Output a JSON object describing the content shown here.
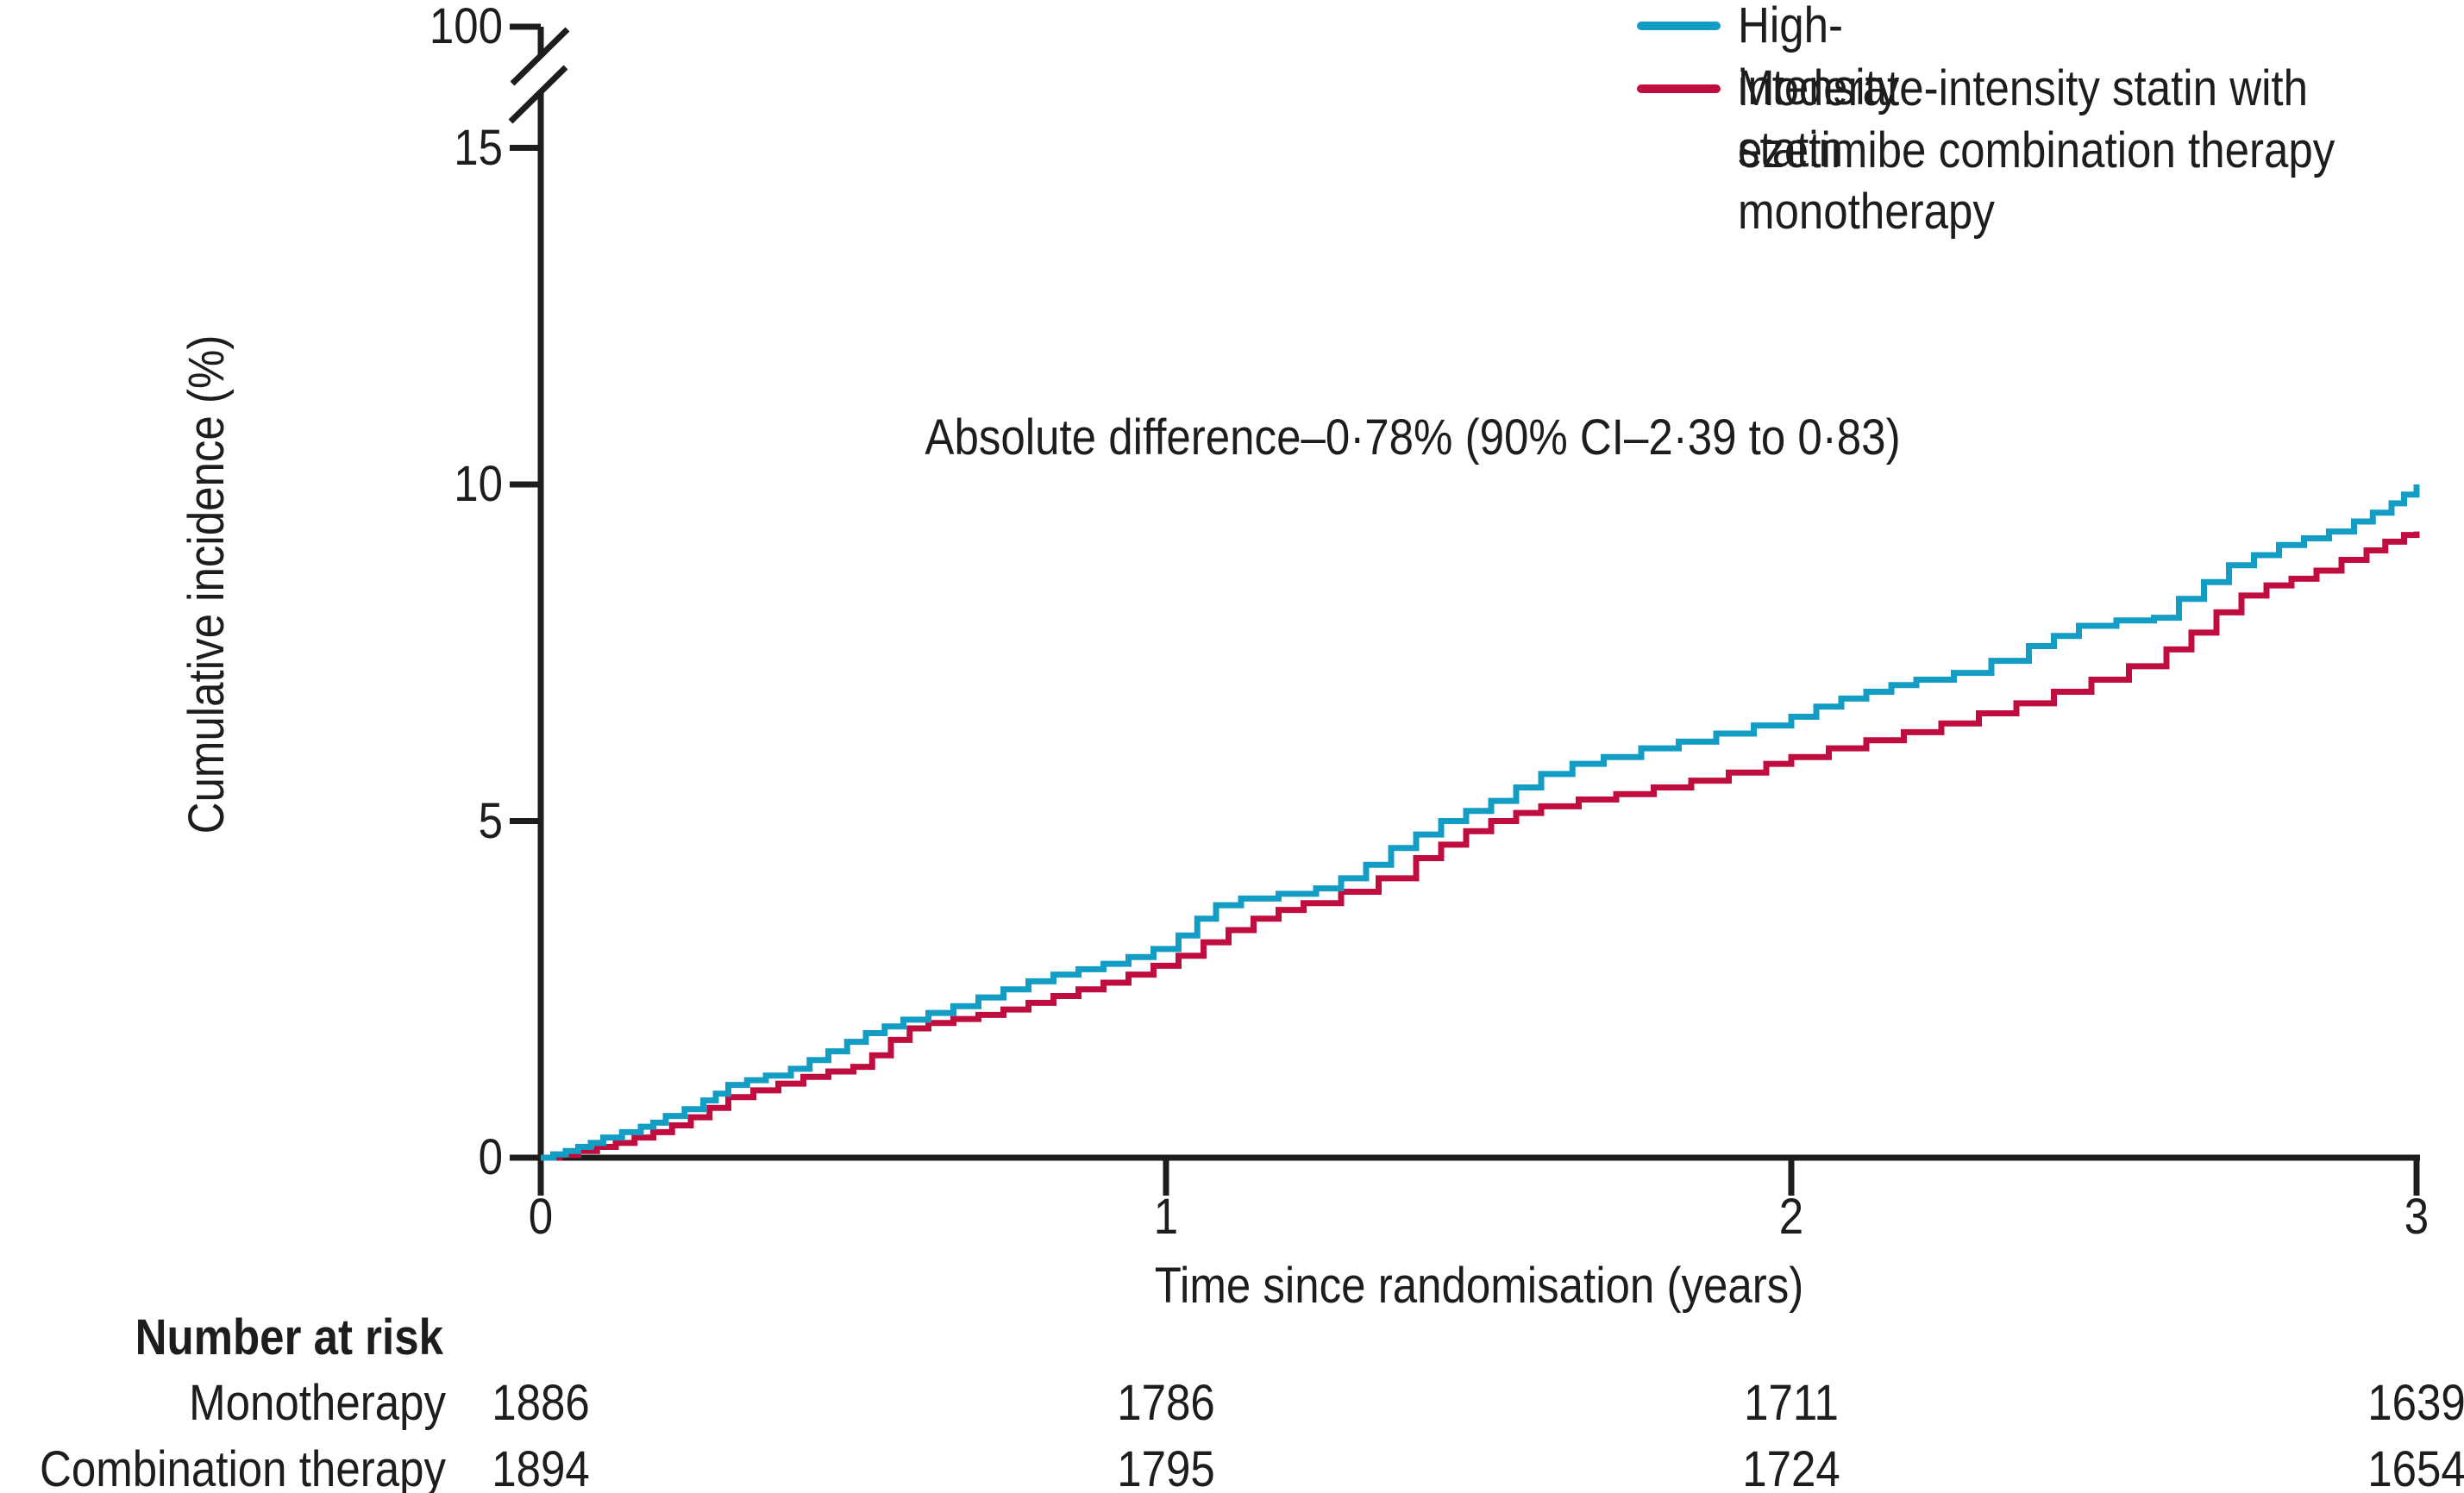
{
  "figure": {
    "background": "#ffffff",
    "text_color": "#1d1d1b",
    "axis_color": "#1d1d1b"
  },
  "chart_data": {
    "type": "line",
    "subtype": "cumulative-incidence-step-curves",
    "title": "",
    "annotation": "Absolute difference–0·78% (90% CI–2·39 to 0·83)",
    "xlabel": "Time since randomisation (years)",
    "ylabel": "Cumulative incidence (%)",
    "xlim": [
      0,
      3
    ],
    "ylim_displayed": [
      0,
      15
    ],
    "y_axis_break": true,
    "y_axis_top_label": "100",
    "x_ticks": [
      {
        "label": "0",
        "t": 0
      },
      {
        "label": "1",
        "t": 1
      },
      {
        "label": "2",
        "t": 2
      },
      {
        "label": "3",
        "t": 3
      }
    ],
    "y_ticks": [
      {
        "label": "0",
        "pct": 0
      },
      {
        "label": "5",
        "pct": 5
      },
      {
        "label": "10",
        "pct": 10
      },
      {
        "label": "15",
        "pct": 15
      }
    ],
    "grid": false,
    "legend_position": "top-right",
    "series": [
      {
        "name": "High-intensity statin monotherapy",
        "color": "#149DC4",
        "points": [
          [
            0.0,
            0.0
          ],
          [
            0.02,
            0.05
          ],
          [
            0.04,
            0.1
          ],
          [
            0.06,
            0.16
          ],
          [
            0.08,
            0.22
          ],
          [
            0.1,
            0.3
          ],
          [
            0.13,
            0.38
          ],
          [
            0.16,
            0.46
          ],
          [
            0.18,
            0.52
          ],
          [
            0.2,
            0.62
          ],
          [
            0.23,
            0.72
          ],
          [
            0.26,
            0.85
          ],
          [
            0.28,
            0.95
          ],
          [
            0.3,
            1.08
          ],
          [
            0.33,
            1.15
          ],
          [
            0.36,
            1.22
          ],
          [
            0.4,
            1.32
          ],
          [
            0.43,
            1.45
          ],
          [
            0.46,
            1.58
          ],
          [
            0.49,
            1.72
          ],
          [
            0.52,
            1.85
          ],
          [
            0.55,
            1.95
          ],
          [
            0.58,
            2.05
          ],
          [
            0.62,
            2.15
          ],
          [
            0.66,
            2.25
          ],
          [
            0.7,
            2.38
          ],
          [
            0.74,
            2.5
          ],
          [
            0.78,
            2.62
          ],
          [
            0.82,
            2.72
          ],
          [
            0.86,
            2.8
          ],
          [
            0.9,
            2.88
          ],
          [
            0.94,
            2.98
          ],
          [
            0.98,
            3.1
          ],
          [
            1.02,
            3.3
          ],
          [
            1.05,
            3.55
          ],
          [
            1.08,
            3.75
          ],
          [
            1.12,
            3.85
          ],
          [
            1.18,
            3.92
          ],
          [
            1.24,
            4.0
          ],
          [
            1.28,
            4.15
          ],
          [
            1.32,
            4.35
          ],
          [
            1.36,
            4.6
          ],
          [
            1.4,
            4.8
          ],
          [
            1.44,
            5.0
          ],
          [
            1.48,
            5.15
          ],
          [
            1.52,
            5.3
          ],
          [
            1.56,
            5.5
          ],
          [
            1.6,
            5.7
          ],
          [
            1.65,
            5.85
          ],
          [
            1.7,
            5.95
          ],
          [
            1.76,
            6.08
          ],
          [
            1.82,
            6.18
          ],
          [
            1.88,
            6.3
          ],
          [
            1.94,
            6.42
          ],
          [
            2.0,
            6.55
          ],
          [
            2.04,
            6.7
          ],
          [
            2.08,
            6.82
          ],
          [
            2.12,
            6.92
          ],
          [
            2.16,
            7.02
          ],
          [
            2.2,
            7.1
          ],
          [
            2.26,
            7.2
          ],
          [
            2.32,
            7.38
          ],
          [
            2.38,
            7.6
          ],
          [
            2.42,
            7.75
          ],
          [
            2.46,
            7.9
          ],
          [
            2.52,
            7.98
          ],
          [
            2.58,
            8.02
          ],
          [
            2.62,
            8.3
          ],
          [
            2.66,
            8.55
          ],
          [
            2.7,
            8.8
          ],
          [
            2.74,
            8.95
          ],
          [
            2.78,
            9.1
          ],
          [
            2.82,
            9.2
          ],
          [
            2.86,
            9.3
          ],
          [
            2.9,
            9.45
          ],
          [
            2.93,
            9.58
          ],
          [
            2.96,
            9.72
          ],
          [
            2.98,
            9.85
          ],
          [
            3.0,
            10.0
          ]
        ]
      },
      {
        "name": "Moderate-intensity statin with ezetimibe combination therapy",
        "color": "#C00D3F",
        "points": [
          [
            0.0,
            0.0
          ],
          [
            0.03,
            0.04
          ],
          [
            0.06,
            0.1
          ],
          [
            0.09,
            0.16
          ],
          [
            0.12,
            0.22
          ],
          [
            0.15,
            0.3
          ],
          [
            0.18,
            0.38
          ],
          [
            0.21,
            0.48
          ],
          [
            0.24,
            0.6
          ],
          [
            0.27,
            0.74
          ],
          [
            0.3,
            0.9
          ],
          [
            0.34,
            1.0
          ],
          [
            0.38,
            1.1
          ],
          [
            0.42,
            1.2
          ],
          [
            0.46,
            1.28
          ],
          [
            0.5,
            1.35
          ],
          [
            0.53,
            1.52
          ],
          [
            0.56,
            1.75
          ],
          [
            0.59,
            1.92
          ],
          [
            0.62,
            2.0
          ],
          [
            0.66,
            2.06
          ],
          [
            0.7,
            2.12
          ],
          [
            0.74,
            2.2
          ],
          [
            0.78,
            2.3
          ],
          [
            0.82,
            2.4
          ],
          [
            0.86,
            2.5
          ],
          [
            0.9,
            2.6
          ],
          [
            0.94,
            2.72
          ],
          [
            0.98,
            2.85
          ],
          [
            1.02,
            3.0
          ],
          [
            1.06,
            3.2
          ],
          [
            1.1,
            3.38
          ],
          [
            1.14,
            3.55
          ],
          [
            1.18,
            3.68
          ],
          [
            1.22,
            3.78
          ],
          [
            1.28,
            3.95
          ],
          [
            1.34,
            4.15
          ],
          [
            1.4,
            4.45
          ],
          [
            1.44,
            4.65
          ],
          [
            1.48,
            4.85
          ],
          [
            1.52,
            5.0
          ],
          [
            1.56,
            5.12
          ],
          [
            1.6,
            5.22
          ],
          [
            1.66,
            5.32
          ],
          [
            1.72,
            5.4
          ],
          [
            1.78,
            5.5
          ],
          [
            1.84,
            5.6
          ],
          [
            1.9,
            5.72
          ],
          [
            1.96,
            5.85
          ],
          [
            2.0,
            5.95
          ],
          [
            2.06,
            6.08
          ],
          [
            2.12,
            6.2
          ],
          [
            2.18,
            6.32
          ],
          [
            2.24,
            6.45
          ],
          [
            2.3,
            6.6
          ],
          [
            2.36,
            6.75
          ],
          [
            2.42,
            6.92
          ],
          [
            2.48,
            7.1
          ],
          [
            2.54,
            7.3
          ],
          [
            2.6,
            7.55
          ],
          [
            2.64,
            7.8
          ],
          [
            2.68,
            8.1
          ],
          [
            2.72,
            8.35
          ],
          [
            2.76,
            8.5
          ],
          [
            2.8,
            8.6
          ],
          [
            2.84,
            8.72
          ],
          [
            2.88,
            8.88
          ],
          [
            2.92,
            9.02
          ],
          [
            2.95,
            9.15
          ],
          [
            2.98,
            9.25
          ],
          [
            3.0,
            9.3
          ]
        ]
      }
    ],
    "number_at_risk": {
      "heading": "Number at risk",
      "rows": [
        {
          "label": "Monotherapy",
          "values": [
            "1886",
            "1786",
            "1711",
            "1639"
          ]
        },
        {
          "label": "Combination therapy",
          "values": [
            "1894",
            "1795",
            "1724",
            "1654"
          ]
        }
      ]
    }
  }
}
